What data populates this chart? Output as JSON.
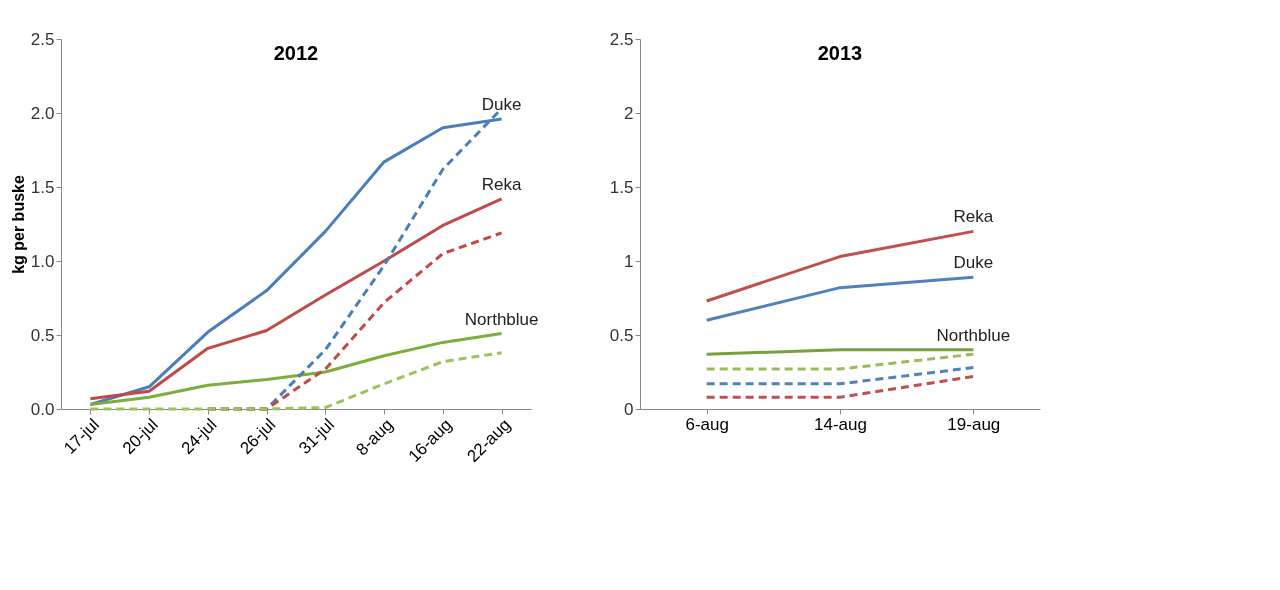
{
  "chart_data": [
    {
      "type": "line",
      "title": "2012",
      "ylabel": "kg per buske",
      "categories": [
        "17-jul",
        "20-jul",
        "24-jul",
        "26-jul",
        "31-jul",
        "8-aug",
        "16-aug",
        "22-aug"
      ],
      "ylim": [
        0,
        2.5
      ],
      "yticks": [
        {
          "value": 0,
          "label": "0.0"
        },
        {
          "value": 0.5,
          "label": "0.5"
        },
        {
          "value": 1,
          "label": "1.0"
        },
        {
          "value": 1.5,
          "label": "1.5"
        },
        {
          "value": 2,
          "label": "2.0"
        },
        {
          "value": 2.5,
          "label": "2.5"
        }
      ],
      "grid": false,
      "marker": "none",
      "series": [
        {
          "name": "Duke",
          "color": "#4a7ebb",
          "line_style": "solid",
          "values": [
            0.03,
            0.15,
            0.52,
            0.8,
            1.2,
            1.67,
            1.9,
            1.96
          ]
        },
        {
          "name": "Reka",
          "color": "#be4b48",
          "line_style": "solid",
          "values": [
            0.07,
            0.12,
            0.41,
            0.53,
            0.77,
            1.0,
            1.24,
            1.42
          ]
        },
        {
          "name": "Northblue",
          "color": "#7ead3e",
          "line_style": "solid",
          "values": [
            0.03,
            0.08,
            0.16,
            0.2,
            0.25,
            0.36,
            0.45,
            0.51
          ]
        },
        {
          "color": "#4a7ebb",
          "line_style": "dashed",
          "values": [
            null,
            null,
            0,
            0,
            0.4,
            0.97,
            1.62,
            2.03
          ]
        },
        {
          "color": "#be4b48",
          "line_style": "dashed",
          "values": [
            null,
            null,
            0,
            0,
            0.27,
            0.72,
            1.05,
            1.19
          ]
        },
        {
          "color": "#9bc35a",
          "line_style": "dashed",
          "values": [
            0,
            0,
            0,
            0,
            0.01,
            0.17,
            0.32,
            0.38
          ]
        }
      ]
    },
    {
      "type": "line",
      "title": "2013",
      "categories": [
        "6-aug",
        "14-aug",
        "19-aug"
      ],
      "ylim": [
        0,
        2.5
      ],
      "yticks": [
        0,
        0.5,
        1,
        1.5,
        2,
        2.5
      ],
      "grid": false,
      "marker": "none",
      "series": [
        {
          "name": "Reka",
          "color": "#c0504d",
          "line_style": "solid",
          "values": [
            0.73,
            1.03,
            1.2
          ]
        },
        {
          "name": "Duke",
          "color": "#4f81bd",
          "line_style": "solid",
          "values": [
            0.6,
            0.82,
            0.89
          ]
        },
        {
          "name": "Northblue",
          "color": "#77a03e",
          "line_style": "solid",
          "values": [
            0.37,
            0.4,
            0.4
          ]
        },
        {
          "color": "#9bbb59",
          "line_style": "dashed",
          "values": [
            0.27,
            0.27,
            0.37
          ]
        },
        {
          "color": "#4f81bd",
          "line_style": "dashed",
          "values": [
            0.17,
            0.17,
            0.28
          ]
        },
        {
          "color": "#c0504d",
          "line_style": "dashed",
          "values": [
            0.08,
            0.08,
            0.22
          ]
        }
      ]
    }
  ]
}
